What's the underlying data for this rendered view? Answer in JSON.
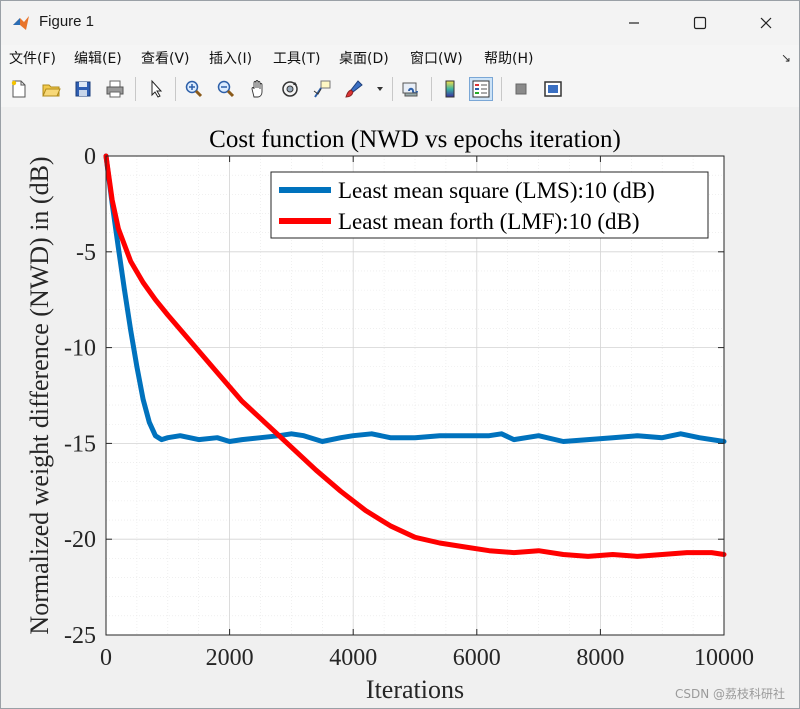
{
  "window": {
    "title": "Figure 1",
    "controls": {
      "minimize": "minimize",
      "maximize": "maximize",
      "close": "close"
    }
  },
  "menu": {
    "items": [
      {
        "label": "文件(F)"
      },
      {
        "label": "编辑(E)"
      },
      {
        "label": "查看(V)"
      },
      {
        "label": "插入(I)"
      },
      {
        "label": "工具(T)"
      },
      {
        "label": "桌面(D)"
      },
      {
        "label": "窗口(W)"
      },
      {
        "label": "帮助(H)"
      }
    ],
    "overflow_icon": "dock-arrow-icon"
  },
  "toolbar": {
    "icons": [
      "new-figure-icon",
      "open-file-icon",
      "save-icon",
      "print-icon",
      "pointer-icon",
      "zoom-in-icon",
      "zoom-out-icon",
      "pan-hand-icon",
      "rotate-3d-icon",
      "data-cursor-icon",
      "brush-icon",
      "dropdown-arrow-icon",
      "link-plot-icon",
      "colorbar-icon",
      "legend-icon",
      "hide-plot-tools-icon",
      "show-plot-tools-icon"
    ]
  },
  "chart_data": {
    "type": "line",
    "title": "Cost function (NWD vs epochs iteration)",
    "xlabel": "Iterations",
    "ylabel": "Normalized weight difference (NWD) in (dB)",
    "xlim": [
      0,
      10000
    ],
    "ylim": [
      -25,
      0
    ],
    "xticks": [
      "0",
      "2000",
      "4000",
      "6000",
      "8000",
      "10000"
    ],
    "yticks": [
      "0",
      "-5",
      "-10",
      "-15",
      "-20",
      "-25"
    ],
    "grid": true,
    "minor_grid": true,
    "legend_position": "top-right",
    "series": [
      {
        "name": "Least mean square (LMS):10 (dB)",
        "color": "#0072BD",
        "x": [
          0,
          100,
          200,
          300,
          400,
          500,
          600,
          700,
          800,
          900,
          1000,
          1200,
          1500,
          1800,
          2000,
          2200,
          2500,
          2800,
          3000,
          3200,
          3500,
          3800,
          4000,
          4300,
          4600,
          5000,
          5400,
          5800,
          6200,
          6400,
          6600,
          7000,
          7400,
          7800,
          8200,
          8600,
          9000,
          9300,
          9600,
          10000
        ],
        "y": [
          0,
          -2.5,
          -4.8,
          -7.0,
          -9.1,
          -11.0,
          -12.7,
          -13.9,
          -14.6,
          -14.8,
          -14.7,
          -14.6,
          -14.8,
          -14.7,
          -14.9,
          -14.8,
          -14.7,
          -14.6,
          -14.5,
          -14.6,
          -14.9,
          -14.7,
          -14.6,
          -14.5,
          -14.7,
          -14.7,
          -14.6,
          -14.6,
          -14.6,
          -14.5,
          -14.8,
          -14.6,
          -14.9,
          -14.8,
          -14.7,
          -14.6,
          -14.7,
          -14.5,
          -14.7,
          -14.9
        ]
      },
      {
        "name": "Least mean forth (LMF):10 (dB)",
        "color": "#FF0000",
        "x": [
          0,
          100,
          200,
          400,
          600,
          800,
          1000,
          1400,
          1800,
          2200,
          2600,
          3000,
          3400,
          3800,
          4200,
          4600,
          5000,
          5400,
          5800,
          6200,
          6600,
          7000,
          7400,
          7800,
          8200,
          8600,
          9000,
          9400,
          9800,
          10000
        ],
        "y": [
          0,
          -2.3,
          -3.8,
          -5.5,
          -6.6,
          -7.5,
          -8.3,
          -9.8,
          -11.3,
          -12.8,
          -14.0,
          -15.2,
          -16.4,
          -17.5,
          -18.5,
          -19.3,
          -19.9,
          -20.2,
          -20.4,
          -20.6,
          -20.7,
          -20.6,
          -20.8,
          -20.9,
          -20.8,
          -20.9,
          -20.8,
          -20.7,
          -20.7,
          -20.8
        ]
      }
    ]
  },
  "watermark": "CSDN @荔枝科研社"
}
